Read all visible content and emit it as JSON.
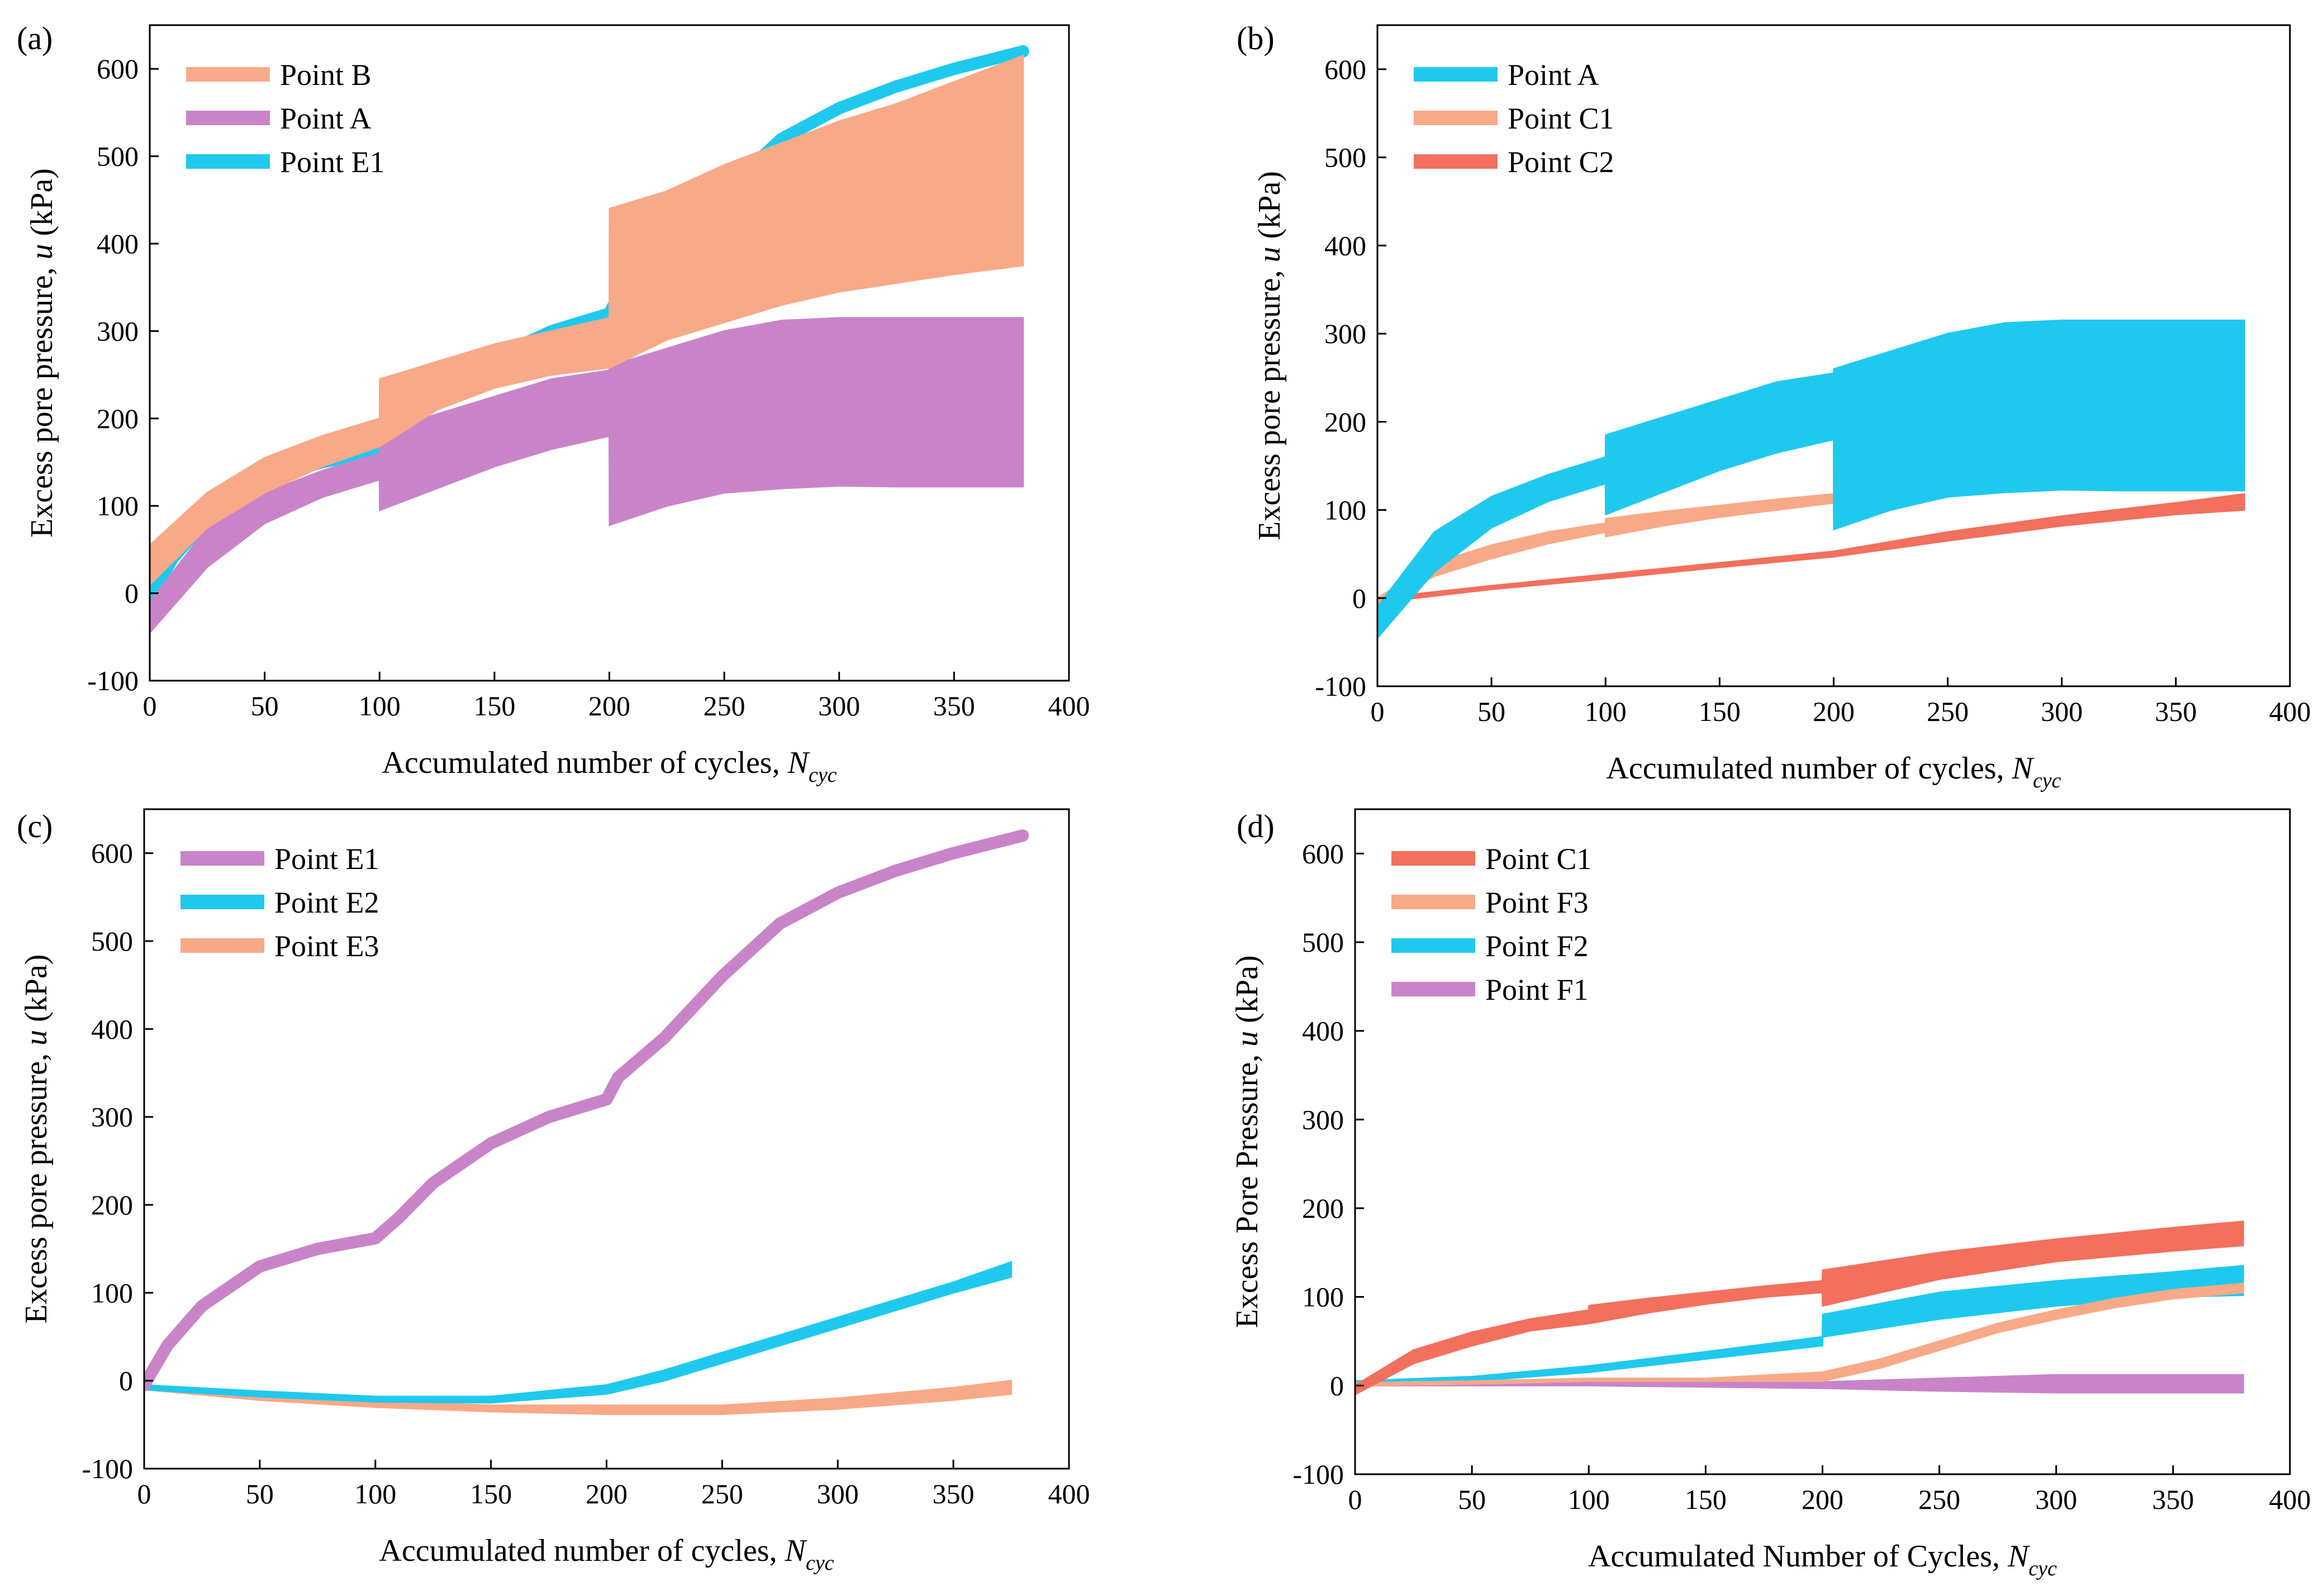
{
  "colors": {
    "salmon": "#F8A987",
    "violet": "#C984C9",
    "cyan": "#1FC9EE",
    "red": "#F2705D"
  },
  "chart_data": [
    {
      "id": "a",
      "type": "line",
      "panel_label": "(a)",
      "xlabel_prefix": "Accumulated number of cycles, ",
      "xlabel_var": "N",
      "xlabel_sub": "cyc",
      "ylabel_prefix": "Excess pore pressure, ",
      "ylabel_var": "u",
      "ylabel_suffix": " (kPa)",
      "xlim": [
        0,
        400
      ],
      "ylim": [
        -100,
        650
      ],
      "xticks": [
        0,
        50,
        100,
        150,
        200,
        250,
        300,
        350,
        400
      ],
      "yticks": [
        -100,
        0,
        100,
        200,
        300,
        400,
        500,
        600
      ],
      "legend_position": "top-left",
      "series": [
        {
          "name": "Point B",
          "color": "salmon",
          "style": "band",
          "x": [
            0,
            25,
            50,
            75,
            100,
            100.1,
            125,
            150,
            175,
            200,
            200.1,
            225,
            250,
            275,
            300,
            325,
            350,
            380
          ],
          "lower": [
            10,
            75,
            115,
            145,
            168,
            168,
            210,
            235,
            250,
            258,
            258,
            290,
            310,
            330,
            345,
            355,
            365,
            375
          ],
          "upper": [
            55,
            115,
            155,
            180,
            200,
            245,
            265,
            285,
            300,
            315,
            440,
            460,
            490,
            515,
            540,
            560,
            585,
            615
          ]
        },
        {
          "name": "Point A",
          "color": "violet",
          "style": "band",
          "x": [
            0,
            25,
            50,
            75,
            100,
            100.1,
            125,
            150,
            175,
            200,
            200.1,
            225,
            250,
            275,
            300,
            325,
            350,
            380
          ],
          "lower": [
            -45,
            30,
            80,
            110,
            130,
            95,
            120,
            145,
            165,
            180,
            78,
            100,
            115,
            120,
            123,
            122,
            122,
            122
          ],
          "upper": [
            -10,
            75,
            115,
            140,
            160,
            185,
            205,
            225,
            245,
            255,
            260,
            280,
            300,
            312,
            315,
            315,
            315,
            315
          ]
        },
        {
          "name": "Point E1",
          "color": "cyan",
          "style": "thick",
          "x": [
            0,
            10,
            25,
            50,
            75,
            100,
            110,
            125,
            150,
            175,
            200,
            205,
            225,
            250,
            275,
            300,
            325,
            350,
            380
          ],
          "y": [
            -5,
            40,
            85,
            130,
            150,
            162,
            185,
            225,
            270,
            300,
            320,
            345,
            390,
            460,
            520,
            555,
            580,
            600,
            620
          ]
        }
      ]
    },
    {
      "id": "b",
      "type": "line",
      "panel_label": "(b)",
      "xlabel_prefix": "Accumulated number of cycles, ",
      "xlabel_var": "N",
      "xlabel_sub": "cyc",
      "ylabel_prefix": "Excess pore pressure, ",
      "ylabel_var": "u",
      "ylabel_suffix": " (kPa)",
      "xlim": [
        0,
        400
      ],
      "ylim": [
        -100,
        650
      ],
      "xticks": [
        0,
        50,
        100,
        150,
        200,
        250,
        300,
        350,
        400
      ],
      "yticks": [
        -100,
        0,
        100,
        200,
        300,
        400,
        500,
        600
      ],
      "legend_position": "top-left",
      "series": [
        {
          "name": "Point A",
          "color": "cyan",
          "style": "band",
          "x": [
            0,
            25,
            50,
            75,
            100,
            100.1,
            125,
            150,
            175,
            200,
            200.1,
            225,
            250,
            275,
            300,
            325,
            350,
            380
          ],
          "lower": [
            -45,
            30,
            80,
            110,
            130,
            95,
            120,
            145,
            165,
            180,
            78,
            100,
            115,
            120,
            123,
            122,
            122,
            122
          ],
          "upper": [
            -10,
            75,
            115,
            140,
            160,
            185,
            205,
            225,
            245,
            255,
            260,
            280,
            300,
            312,
            315,
            315,
            315,
            315
          ]
        },
        {
          "name": "Point C1",
          "color": "salmon",
          "style": "band",
          "x": [
            0,
            25,
            50,
            75,
            100,
            100.1,
            125,
            150,
            175,
            200,
            200.1,
            250,
            300,
            350,
            380
          ],
          "lower": [
            -10,
            25,
            45,
            62,
            75,
            70,
            82,
            92,
            100,
            108,
            95,
            120,
            140,
            152,
            158
          ],
          "upper": [
            0,
            40,
            60,
            75,
            85,
            90,
            98,
            105,
            112,
            118,
            130,
            150,
            165,
            178,
            185
          ]
        },
        {
          "name": "Point C2",
          "color": "red",
          "style": "band",
          "x": [
            0,
            50,
            100,
            150,
            200,
            250,
            300,
            350,
            380
          ],
          "lower": [
            -5,
            10,
            22,
            35,
            47,
            65,
            82,
            95,
            100
          ],
          "upper": [
            0,
            14,
            27,
            40,
            53,
            75,
            93,
            108,
            118
          ]
        }
      ]
    },
    {
      "id": "c",
      "type": "line",
      "panel_label": "(c)",
      "xlabel_prefix": "Accumulated number of cycles, ",
      "xlabel_var": "N",
      "xlabel_sub": "cyc",
      "ylabel_prefix": "Excess pore pressure, ",
      "ylabel_var": "u",
      "ylabel_suffix": " (kPa)",
      "xlim": [
        0,
        400
      ],
      "ylim": [
        -100,
        650
      ],
      "xticks": [
        0,
        50,
        100,
        150,
        200,
        250,
        300,
        350,
        400
      ],
      "yticks": [
        -100,
        0,
        100,
        200,
        300,
        400,
        500,
        600
      ],
      "legend_position": "top-left",
      "series": [
        {
          "name": "Point E1",
          "color": "violet",
          "style": "thick",
          "x": [
            0,
            10,
            25,
            50,
            75,
            100,
            110,
            125,
            150,
            175,
            200,
            205,
            225,
            250,
            275,
            300,
            325,
            350,
            380
          ],
          "y": [
            -5,
            40,
            85,
            130,
            150,
            162,
            185,
            225,
            270,
            300,
            320,
            345,
            390,
            460,
            520,
            555,
            580,
            600,
            620
          ]
        },
        {
          "name": "Point E2",
          "color": "cyan",
          "style": "band",
          "x": [
            0,
            50,
            100,
            150,
            200,
            225,
            250,
            275,
            300,
            325,
            350,
            375
          ],
          "lower": [
            -10,
            -18,
            -24,
            -25,
            -15,
            0,
            20,
            40,
            60,
            80,
            100,
            118
          ],
          "upper": [
            -5,
            -12,
            -18,
            -18,
            -5,
            12,
            32,
            52,
            72,
            92,
            112,
            135
          ]
        },
        {
          "name": "Point E3",
          "color": "salmon",
          "style": "band",
          "x": [
            0,
            50,
            100,
            150,
            200,
            250,
            300,
            350,
            375
          ],
          "lower": [
            -10,
            -22,
            -30,
            -35,
            -38,
            -38,
            -32,
            -22,
            -15
          ],
          "upper": [
            -5,
            -15,
            -23,
            -28,
            -28,
            -28,
            -20,
            -8,
            0
          ]
        }
      ]
    },
    {
      "id": "d",
      "type": "line",
      "panel_label": "(d)",
      "xlabel_prefix": "Accumulated Number of Cycles, ",
      "xlabel_var": "N",
      "xlabel_sub": "cyc",
      "ylabel_prefix": "Excess Pore Pressure, ",
      "ylabel_var": "u",
      "ylabel_suffix": " (kPa)",
      "xlim": [
        0,
        400
      ],
      "ylim": [
        -100,
        650
      ],
      "xticks": [
        0,
        50,
        100,
        150,
        200,
        250,
        300,
        350,
        400
      ],
      "yticks": [
        -100,
        0,
        100,
        200,
        300,
        400,
        500,
        600
      ],
      "legend_position": "top-left",
      "series": [
        {
          "name": "Point C1",
          "color": "red",
          "style": "band",
          "x": [
            0,
            25,
            50,
            75,
            100,
            100.1,
            125,
            150,
            175,
            200,
            200.1,
            250,
            300,
            350,
            380
          ],
          "lower": [
            -10,
            25,
            45,
            62,
            70,
            70,
            82,
            92,
            100,
            105,
            90,
            120,
            140,
            152,
            158
          ],
          "upper": [
            0,
            40,
            60,
            75,
            85,
            90,
            98,
            105,
            112,
            118,
            130,
            150,
            165,
            178,
            185
          ]
        },
        {
          "name": "Point F3",
          "color": "salmon",
          "style": "band",
          "x": [
            0,
            50,
            100,
            150,
            200,
            225,
            250,
            275,
            300,
            325,
            350,
            380
          ],
          "lower": [
            0,
            2,
            5,
            5,
            5,
            20,
            40,
            60,
            75,
            88,
            98,
            105
          ],
          "upper": [
            3,
            5,
            8,
            8,
            15,
            30,
            50,
            70,
            85,
            98,
            108,
            115
          ]
        },
        {
          "name": "Point F2",
          "color": "cyan",
          "style": "band",
          "x": [
            0,
            50,
            100,
            150,
            200,
            200.1,
            250,
            300,
            350,
            380
          ],
          "lower": [
            0,
            5,
            15,
            30,
            45,
            55,
            75,
            90,
            100,
            102
          ],
          "upper": [
            5,
            10,
            22,
            38,
            55,
            80,
            105,
            118,
            128,
            135
          ]
        },
        {
          "name": "Point F1",
          "color": "violet",
          "style": "band",
          "x": [
            0,
            100,
            200,
            250,
            300,
            350,
            380
          ],
          "lower": [
            0,
            0,
            -3,
            -6,
            -8,
            -8,
            -8
          ],
          "upper": [
            2,
            4,
            4,
            8,
            12,
            12,
            12
          ]
        }
      ]
    }
  ]
}
